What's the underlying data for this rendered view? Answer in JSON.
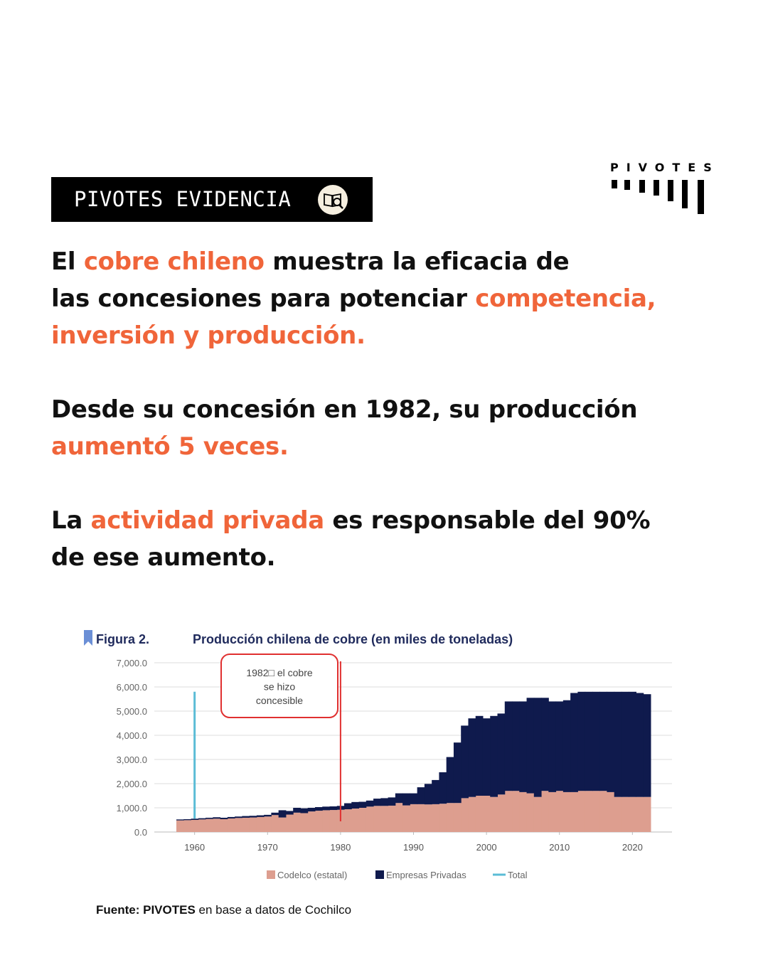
{
  "badge": "PIVOTES EVIDENCIA",
  "logo": "PIVOTES",
  "paragraphs": [
    [
      [
        {
          "text": "El "
        },
        {
          "text": "cobre chileno",
          "highlight": true
        },
        {
          "text": " muestra la eficacia de"
        }
      ],
      [
        {
          "text": "las concesiones para potenciar "
        },
        {
          "text": "competencia,",
          "highlight": true
        }
      ],
      [
        {
          "text": "inversión y producción.",
          "highlight": true
        }
      ]
    ],
    [
      [
        {
          "text": "Desde su concesión en 1982, su producción"
        }
      ],
      [
        {
          "text": "aumentó 5 veces.",
          "highlight": true
        }
      ]
    ],
    [
      [
        {
          "text": "La "
        },
        {
          "text": "actividad privada",
          "highlight": true
        },
        {
          "text": " es responsable del 90%"
        }
      ],
      [
        {
          "text": "de ese aumento."
        }
      ]
    ]
  ],
  "chart_data": {
    "type": "stacked_bar",
    "figure_label": "Figura 2.",
    "title": "Producción chilena de cobre (en miles de toneladas)",
    "x": [
      1958,
      1959,
      1960,
      1961,
      1962,
      1963,
      1964,
      1965,
      1966,
      1967,
      1968,
      1969,
      1970,
      1971,
      1972,
      1973,
      1974,
      1975,
      1976,
      1977,
      1978,
      1979,
      1980,
      1981,
      1982,
      1983,
      1984,
      1985,
      1986,
      1987,
      1988,
      1989,
      1990,
      1991,
      1992,
      1993,
      1994,
      1995,
      1996,
      1997,
      1998,
      1999,
      2000,
      2001,
      2002,
      2003,
      2004,
      2005,
      2006,
      2007,
      2008,
      2009,
      2010,
      2011,
      2012,
      2013,
      2014,
      2015,
      2016,
      2017,
      2018,
      2019,
      2020,
      2021,
      2022
    ],
    "series": [
      {
        "name": "Codelco (estatal)",
        "color": "#dd9e8f",
        "values": [
          480,
          490,
          500,
          520,
          540,
          550,
          530,
          560,
          580,
          590,
          600,
          620,
          640,
          700,
          600,
          720,
          800,
          780,
          850,
          880,
          900,
          910,
          920,
          940,
          970,
          1000,
          1050,
          1080,
          1080,
          1090,
          1200,
          1100,
          1150,
          1150,
          1140,
          1150,
          1170,
          1200,
          1200,
          1400,
          1450,
          1500,
          1500,
          1450,
          1550,
          1700,
          1700,
          1650,
          1600,
          1450,
          1700,
          1650,
          1700,
          1650,
          1650,
          1700,
          1700,
          1700,
          1700,
          1650,
          1450,
          1450,
          1450,
          1450,
          1450
        ]
      },
      {
        "name": "Empresas Privadas",
        "color": "#0f1a4d",
        "values": [
          40,
          40,
          50,
          50,
          50,
          60,
          60,
          60,
          60,
          70,
          70,
          70,
          70,
          100,
          300,
          150,
          200,
          200,
          150,
          150,
          150,
          150,
          160,
          250,
          270,
          250,
          250,
          300,
          320,
          340,
          400,
          500,
          450,
          700,
          850,
          1000,
          1300,
          1900,
          2500,
          3000,
          3250,
          3300,
          3200,
          3350,
          3350,
          3700,
          3700,
          3750,
          3950,
          4100,
          3850,
          3750,
          3700,
          3800,
          4100,
          4100,
          4100,
          4100,
          4100,
          4150,
          4350,
          4350,
          4350,
          4300,
          4250
        ]
      },
      {
        "name": "Total",
        "color": "#5bbcd6",
        "values": [
          null,
          null,
          5800,
          null,
          null,
          null,
          null,
          null,
          null,
          null,
          null,
          null,
          null,
          null,
          null,
          null,
          null,
          null,
          null,
          null,
          null,
          null,
          null,
          null,
          null,
          null,
          null,
          null,
          null,
          null,
          null,
          null,
          null,
          null,
          null,
          null,
          null,
          null,
          null,
          null,
          null,
          null,
          null,
          null,
          null,
          null,
          null,
          null,
          null,
          null,
          null,
          null,
          null,
          null,
          null,
          null,
          null,
          null,
          null,
          null,
          null,
          null,
          null,
          null,
          null
        ]
      }
    ],
    "xlim": [
      1957.5,
      2022.5
    ],
    "xticks": [
      1960,
      1970,
      1980,
      1990,
      2000,
      2010,
      2020
    ],
    "ylim": [
      0,
      7000
    ],
    "yticks": [
      {
        "value": 0,
        "label": "0.0"
      },
      {
        "value": 1000,
        "label": "1,000.0"
      },
      {
        "value": 2000,
        "label": "2,000.0"
      },
      {
        "value": 3000,
        "label": "3,000.0"
      },
      {
        "value": 4000,
        "label": "4,000.0"
      },
      {
        "value": 5000,
        "label": "5,000.0"
      },
      {
        "value": 6000,
        "label": "6,000.0"
      },
      {
        "value": 7000,
        "label": "7,000.0"
      }
    ],
    "grid": true,
    "annotation": {
      "text": [
        "1982□ el cobre",
        "se hizo",
        "concesible"
      ],
      "x": 1980,
      "color": "#e03030"
    },
    "source": [
      {
        "text": "Fuente: ",
        "bold": true
      },
      {
        "text": "PIVOTES",
        "bold": true
      },
      {
        "text": " en base a datos de Cochilco"
      }
    ]
  }
}
